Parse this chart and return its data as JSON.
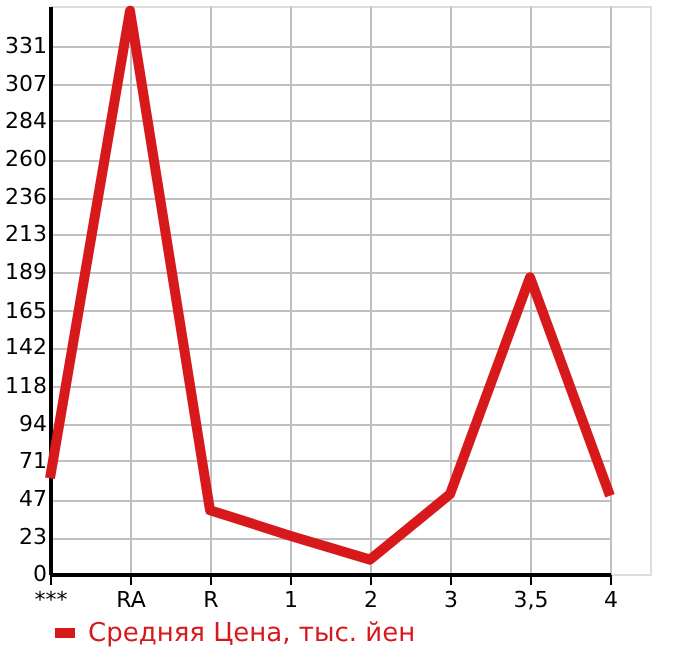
{
  "chart_data": {
    "type": "line",
    "categories": [
      "***",
      "RA",
      "R",
      "1",
      "2",
      "3",
      "3,5",
      "4"
    ],
    "series": [
      {
        "name": "Средняя Цена, тыс. йен",
        "color": "#d7191c",
        "values": [
          60,
          353,
          40,
          24,
          9,
          50,
          186,
          49
        ]
      }
    ],
    "ylim": [
      0,
      356
    ],
    "yticks": [
      0,
      23,
      47,
      71,
      94,
      118,
      142,
      165,
      189,
      213,
      236,
      260,
      284,
      307,
      331
    ],
    "grid": true,
    "legend": "bottom",
    "marker": "none",
    "line_style": "solid"
  }
}
